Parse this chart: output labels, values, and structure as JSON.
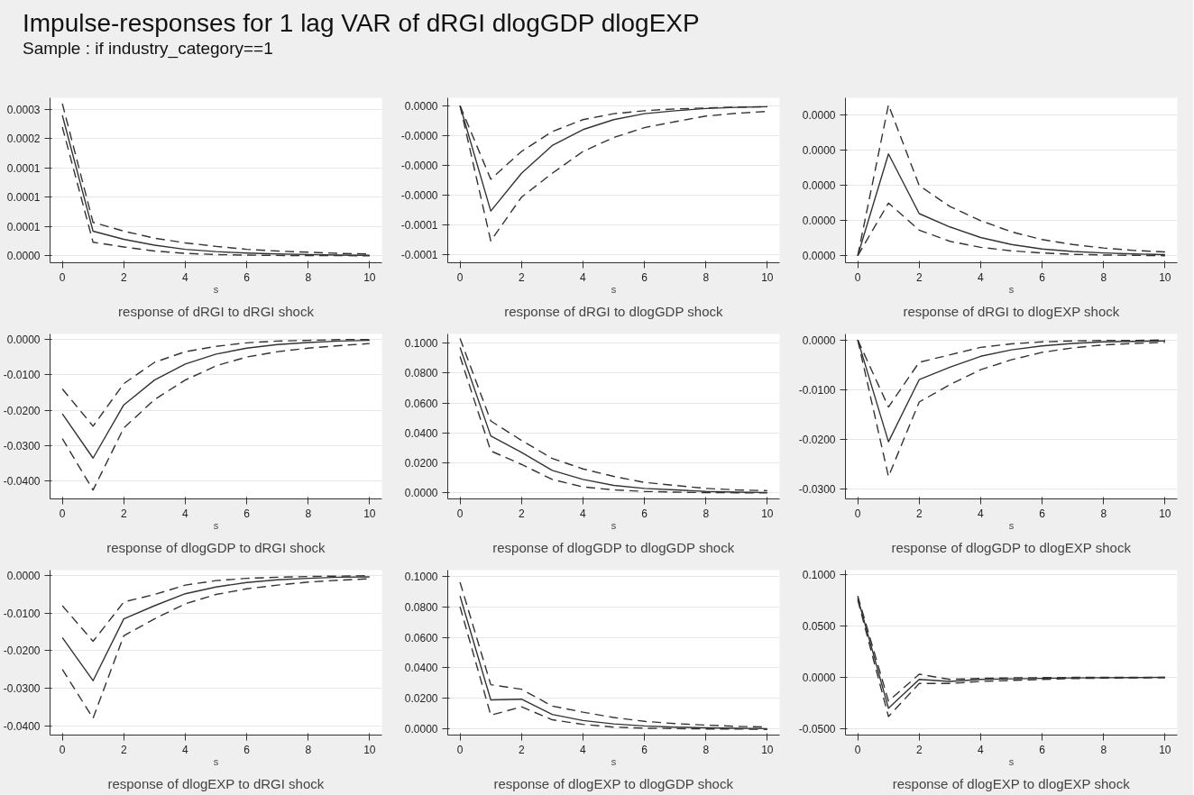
{
  "chart_data": [
    {
      "type": "line",
      "title": "response of dRGI to dRGI shock",
      "xlabel": "s",
      "annotations": [
        "Impulse-responses for 1 lag VAR of dRGI dlogGDP dlogEXP",
        "Sample : if industry_category==1"
      ],
      "x": [
        0,
        1,
        2,
        3,
        4,
        5,
        6,
        7,
        8,
        9,
        10
      ],
      "xlim": [
        -0.4,
        10.4
      ],
      "xticks": [
        0,
        2,
        4,
        6,
        8,
        10
      ],
      "ylim": [
        -1.2e-05,
        0.00027
      ],
      "yticks": [
        {
          "value": 0,
          "label": "0.0000"
        },
        {
          "value": 5e-05,
          "label": "0.0001"
        },
        {
          "value": 0.0001,
          "label": "0.0001"
        },
        {
          "value": 0.00015,
          "label": "0.0001"
        },
        {
          "value": 0.0002,
          "label": "0.0002"
        },
        {
          "value": 0.00025,
          "label": "0.0003"
        }
      ],
      "grid": "y",
      "series": [
        {
          "color": "#333333",
          "line_style": "solid",
          "values": [
            0.00024,
            4.2e-05,
            2.8e-05,
            1.8e-05,
            1.1e-05,
            7e-06,
            4.5e-06,
            3e-06,
            2e-06,
            1.2e-06,
            8e-07
          ]
        },
        {
          "color": "#333333",
          "line_style": "dashed",
          "values": [
            0.00026,
            5.7e-05,
            4.2e-05,
            3e-05,
            2.2e-05,
            1.6e-05,
            1.1e-05,
            8e-06,
            6e-06,
            4e-06,
            3e-06
          ]
        },
        {
          "color": "#333333",
          "line_style": "dashed",
          "values": [
            0.00022,
            2.3e-05,
            1.5e-05,
            8e-06,
            4e-06,
            2e-06,
            1e-06,
            5e-07,
            2e-07,
            1e-07,
            0
          ]
        }
      ]
    },
    {
      "type": "line",
      "title": "response of dRGI to dlogGDP shock",
      "xlabel": "s",
      "x": [
        0,
        1,
        2,
        3,
        4,
        5,
        6,
        7,
        8,
        9,
        10
      ],
      "xlim": [
        -0.4,
        10.4
      ],
      "xticks": [
        0,
        2,
        4,
        6,
        8,
        10
      ],
      "ylim": [
        -7.9e-05,
        4e-06
      ],
      "yticks": [
        {
          "value": 0,
          "label": "0.0000"
        },
        {
          "value": -1.5e-05,
          "label": "-0.0000"
        },
        {
          "value": -3e-05,
          "label": "-0.0000"
        },
        {
          "value": -4.5e-05,
          "label": "-0.0000"
        },
        {
          "value": -6e-05,
          "label": "-0.0001"
        },
        {
          "value": -7.5e-05,
          "label": "-0.0001"
        }
      ],
      "grid": "y",
      "series": [
        {
          "color": "#333333",
          "line_style": "solid",
          "values": [
            0,
            -5.3e-05,
            -3.4e-05,
            -2e-05,
            -1.2e-05,
            -7e-06,
            -4e-06,
            -2.5e-06,
            -1.4e-06,
            -8e-07,
            -5e-07
          ]
        },
        {
          "color": "#333333",
          "line_style": "dashed",
          "values": [
            0,
            -3.7e-05,
            -2.3e-05,
            -1.3e-05,
            -7e-06,
            -4e-06,
            -2.5e-06,
            -1.6e-06,
            -1.1e-06,
            -7e-07,
            -5e-07
          ]
        },
        {
          "color": "#333333",
          "line_style": "dashed",
          "values": [
            0,
            -6.8e-05,
            -4.6e-05,
            -3.4e-05,
            -2.3e-05,
            -1.6e-05,
            -1.1e-05,
            -8e-06,
            -5.2e-06,
            -3.8e-06,
            -2.8e-06
          ]
        }
      ]
    },
    {
      "type": "line",
      "title": "response of dRGI to dlogEXP shock",
      "xlabel": "s",
      "x": [
        0,
        1,
        2,
        3,
        4,
        5,
        6,
        7,
        8,
        9,
        10
      ],
      "xlim": [
        -0.4,
        10.4
      ],
      "xticks": [
        0,
        2,
        4,
        6,
        8,
        10
      ],
      "ylim": [
        -2e-06,
        4.5e-05
      ],
      "yticks": [
        {
          "value": 0,
          "label": "0.0000"
        },
        {
          "value": 1e-05,
          "label": "0.0000"
        },
        {
          "value": 2e-05,
          "label": "0.0000"
        },
        {
          "value": 3e-05,
          "label": "0.0000"
        },
        {
          "value": 4e-05,
          "label": "0.0000"
        }
      ],
      "grid": "y",
      "series": [
        {
          "color": "#333333",
          "line_style": "solid",
          "values": [
            0,
            2.9e-05,
            1.2e-05,
            8.2e-06,
            5.2e-06,
            3.2e-06,
            1.9e-06,
            1.2e-06,
            8e-07,
            5e-07,
            3e-07
          ]
        },
        {
          "color": "#333333",
          "line_style": "dashed",
          "values": [
            0,
            4.3e-05,
            2e-05,
            1.4e-05,
            1e-05,
            6.8e-06,
            4.6e-06,
            3.2e-06,
            2.2e-06,
            1.5e-06,
            1.1e-06
          ]
        },
        {
          "color": "#333333",
          "line_style": "dashed",
          "values": [
            0,
            1.5e-05,
            7.3e-06,
            4.1e-06,
            2.4e-06,
            1.4e-06,
            8e-07,
            4e-07,
            2e-07,
            1e-07,
            0
          ]
        }
      ]
    },
    {
      "type": "line",
      "title": "response of dlogGDP to dRGI shock",
      "xlabel": "s",
      "x": [
        0,
        1,
        2,
        3,
        4,
        5,
        6,
        7,
        8,
        9,
        10
      ],
      "xlim": [
        -0.4,
        10.4
      ],
      "xticks": [
        0,
        2,
        4,
        6,
        8,
        10
      ],
      "ylim": [
        -0.045,
        0.0015
      ],
      "yticks": [
        {
          "value": 0,
          "label": "0.0000"
        },
        {
          "value": -0.01,
          "label": "-0.0100"
        },
        {
          "value": -0.02,
          "label": "-0.0200"
        },
        {
          "value": -0.03,
          "label": "-0.0300"
        },
        {
          "value": -0.04,
          "label": "-0.0400"
        }
      ],
      "grid": "y",
      "series": [
        {
          "color": "#333333",
          "line_style": "solid",
          "values": [
            -0.021,
            -0.0335,
            -0.0185,
            -0.0115,
            -0.007,
            -0.0042,
            -0.0025,
            -0.0015,
            -0.0009,
            -0.0005,
            -0.0003
          ]
        },
        {
          "color": "#333333",
          "line_style": "dashed",
          "values": [
            -0.014,
            -0.0245,
            -0.0125,
            -0.0065,
            -0.0035,
            -0.002,
            -0.001,
            -0.0005,
            -0.0003,
            -0.0001,
            -0.0001
          ]
        },
        {
          "color": "#333333",
          "line_style": "dashed",
          "values": [
            -0.028,
            -0.0425,
            -0.025,
            -0.017,
            -0.0115,
            -0.0075,
            -0.005,
            -0.0035,
            -0.0025,
            -0.0018,
            -0.0012
          ]
        }
      ]
    },
    {
      "type": "line",
      "title": "response of dlogGDP to dlogGDP shock",
      "xlabel": "s",
      "x": [
        0,
        1,
        2,
        3,
        4,
        5,
        6,
        7,
        8,
        9,
        10
      ],
      "xlim": [
        -0.4,
        10.4
      ],
      "xticks": [
        0,
        2,
        4,
        6,
        8,
        10
      ],
      "ylim": [
        -0.004,
        0.106
      ],
      "yticks": [
        {
          "value": 0,
          "label": "0.0000"
        },
        {
          "value": 0.02,
          "label": "0.0200"
        },
        {
          "value": 0.04,
          "label": "0.0400"
        },
        {
          "value": 0.06,
          "label": "0.0600"
        },
        {
          "value": 0.08,
          "label": "0.0800"
        },
        {
          "value": 0.1,
          "label": "0.1000"
        }
      ],
      "grid": "y",
      "series": [
        {
          "color": "#333333",
          "line_style": "solid",
          "values": [
            0.097,
            0.038,
            0.027,
            0.015,
            0.009,
            0.005,
            0.003,
            0.002,
            0.001,
            0.0005,
            0.0003
          ]
        },
        {
          "color": "#333333",
          "line_style": "dashed",
          "values": [
            0.103,
            0.048,
            0.035,
            0.023,
            0.016,
            0.011,
            0.007,
            0.005,
            0.003,
            0.002,
            0.0015
          ]
        },
        {
          "color": "#333333",
          "line_style": "dashed",
          "values": [
            0.091,
            0.028,
            0.019,
            0.009,
            0.004,
            0.002,
            0.001,
            0.0005,
            0.0002,
            0.0001,
            0
          ]
        }
      ]
    },
    {
      "type": "line",
      "title": "response of dlogGDP to dlogEXP shock",
      "xlabel": "s",
      "x": [
        0,
        1,
        2,
        3,
        4,
        5,
        6,
        7,
        8,
        9,
        10
      ],
      "xlim": [
        -0.4,
        10.4
      ],
      "xticks": [
        0,
        2,
        4,
        6,
        8,
        10
      ],
      "ylim": [
        -0.032,
        0.0012
      ],
      "yticks": [
        {
          "value": 0,
          "label": "0.0000"
        },
        {
          "value": -0.01,
          "label": "-0.0100"
        },
        {
          "value": -0.02,
          "label": "-0.0200"
        },
        {
          "value": -0.03,
          "label": "-0.0300"
        }
      ],
      "grid": "y",
      "series": [
        {
          "color": "#333333",
          "line_style": "solid",
          "values": [
            0,
            -0.0205,
            -0.008,
            -0.0055,
            -0.0033,
            -0.002,
            -0.0012,
            -0.0007,
            -0.0004,
            -0.0003,
            -0.0002
          ]
        },
        {
          "color": "#333333",
          "line_style": "dashed",
          "values": [
            0,
            -0.0135,
            -0.0045,
            -0.003,
            -0.0015,
            -0.0008,
            -0.0004,
            -0.0002,
            -0.0001,
            -0.0001,
            0
          ]
        },
        {
          "color": "#333333",
          "line_style": "dashed",
          "values": [
            0,
            -0.0275,
            -0.0125,
            -0.009,
            -0.006,
            -0.004,
            -0.0025,
            -0.0016,
            -0.001,
            -0.0007,
            -0.0005
          ]
        }
      ]
    },
    {
      "type": "line",
      "title": "response of dlogEXP to dRGI shock",
      "xlabel": "s",
      "x": [
        0,
        1,
        2,
        3,
        4,
        5,
        6,
        7,
        8,
        9,
        10
      ],
      "xlim": [
        -0.4,
        10.4
      ],
      "xticks": [
        0,
        2,
        4,
        6,
        8,
        10
      ],
      "ylim": [
        -0.0425,
        0.0015
      ],
      "yticks": [
        {
          "value": 0,
          "label": "0.0000"
        },
        {
          "value": -0.01,
          "label": "-0.0100"
        },
        {
          "value": -0.02,
          "label": "-0.0200"
        },
        {
          "value": -0.03,
          "label": "-0.0300"
        },
        {
          "value": -0.04,
          "label": "-0.0400"
        }
      ],
      "grid": "y",
      "series": [
        {
          "color": "#333333",
          "line_style": "solid",
          "values": [
            -0.0165,
            -0.028,
            -0.0115,
            -0.008,
            -0.0048,
            -0.003,
            -0.0018,
            -0.0011,
            -0.0007,
            -0.0004,
            -0.0003
          ]
        },
        {
          "color": "#333333",
          "line_style": "dashed",
          "values": [
            -0.008,
            -0.0175,
            -0.007,
            -0.005,
            -0.0025,
            -0.0013,
            -0.0007,
            -0.0004,
            -0.0002,
            -0.0001,
            0
          ]
        },
        {
          "color": "#333333",
          "line_style": "dashed",
          "values": [
            -0.025,
            -0.038,
            -0.016,
            -0.0115,
            -0.0075,
            -0.005,
            -0.0035,
            -0.0025,
            -0.0017,
            -0.0012,
            -0.0008
          ]
        }
      ]
    },
    {
      "type": "line",
      "title": "response of dlogEXP to dlogGDP shock",
      "xlabel": "s",
      "x": [
        0,
        1,
        2,
        3,
        4,
        5,
        6,
        7,
        8,
        9,
        10
      ],
      "xlim": [
        -0.4,
        10.4
      ],
      "xticks": [
        0,
        2,
        4,
        6,
        8,
        10
      ],
      "ylim": [
        -0.004,
        0.104
      ],
      "yticks": [
        {
          "value": 0,
          "label": "0.0000"
        },
        {
          "value": 0.02,
          "label": "0.0200"
        },
        {
          "value": 0.04,
          "label": "0.0400"
        },
        {
          "value": 0.06,
          "label": "0.0600"
        },
        {
          "value": 0.08,
          "label": "0.0800"
        },
        {
          "value": 0.1,
          "label": "0.1000"
        }
      ],
      "grid": "y",
      "series": [
        {
          "color": "#333333",
          "line_style": "solid",
          "values": [
            0.087,
            0.019,
            0.0195,
            0.0095,
            0.0055,
            0.0033,
            0.002,
            0.0012,
            0.0007,
            0.0004,
            0.0002
          ]
        },
        {
          "color": "#333333",
          "line_style": "dashed",
          "values": [
            0.096,
            0.029,
            0.026,
            0.015,
            0.011,
            0.0075,
            0.005,
            0.0035,
            0.0025,
            0.0017,
            0.0012
          ]
        },
        {
          "color": "#333333",
          "line_style": "dashed",
          "values": [
            0.08,
            0.009,
            0.0145,
            0.006,
            0.003,
            0.0012,
            0.0005,
            0.0002,
            0,
            0,
            -0.0003
          ]
        }
      ]
    },
    {
      "type": "line",
      "title": "response of dlogEXP to dlogEXP shock",
      "xlabel": "s",
      "x": [
        0,
        1,
        2,
        3,
        4,
        5,
        6,
        7,
        8,
        9,
        10
      ],
      "xlim": [
        -0.4,
        10.4
      ],
      "xticks": [
        0,
        2,
        4,
        6,
        8,
        10
      ],
      "ylim": [
        -0.056,
        0.104
      ],
      "yticks": [
        {
          "value": -0.05,
          "label": "-0.0500"
        },
        {
          "value": 0,
          "label": "0.0000"
        },
        {
          "value": 0.05,
          "label": "0.0500"
        },
        {
          "value": 0.1,
          "label": "0.1000"
        }
      ],
      "grid": "y",
      "series": [
        {
          "color": "#333333",
          "line_style": "solid",
          "values": [
            0.077,
            -0.03,
            -0.002,
            -0.004,
            -0.002,
            -0.0015,
            -0.001,
            -0.0006,
            -0.0004,
            -0.0002,
            -0.0001
          ]
        },
        {
          "color": "#333333",
          "line_style": "dashed",
          "values": [
            0.079,
            -0.023,
            0.003,
            -0.002,
            -0.001,
            -0.0005,
            -0.0003,
            -0.0001,
            0,
            0,
            0
          ]
        },
        {
          "color": "#333333",
          "line_style": "dashed",
          "values": [
            0.075,
            -0.038,
            -0.006,
            -0.006,
            -0.004,
            -0.003,
            -0.002,
            -0.0012,
            -0.0008,
            -0.0005,
            -0.0003
          ]
        }
      ]
    }
  ]
}
